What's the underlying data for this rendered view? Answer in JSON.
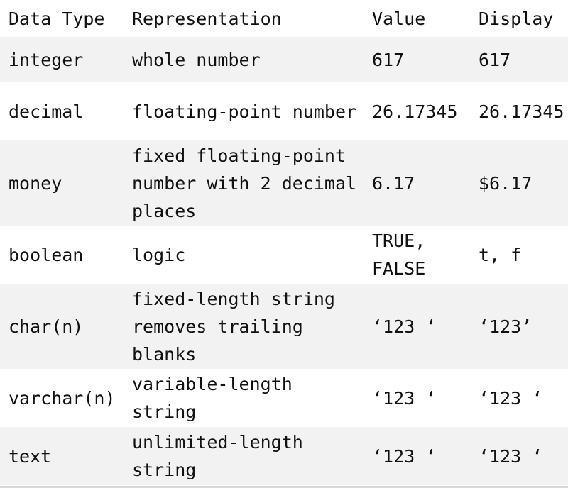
{
  "headers": [
    "Data Type",
    "Representation",
    "Value",
    "Display"
  ],
  "rows": [
    {
      "type": "integer",
      "representation": "whole number",
      "value": "617",
      "display": "617"
    },
    {
      "type": "decimal",
      "representation": "floating-point number",
      "value": "26.17345",
      "display": "26.17345"
    },
    {
      "type": "money",
      "representation": "fixed floating-point number with 2 decimal places",
      "value": "6.17",
      "display": "$6.17"
    },
    {
      "type": "boolean",
      "representation": "logic",
      "value": "TRUE, FALSE",
      "display": "t, f"
    },
    {
      "type": "char(n)",
      "representation": "fixed-length string removes trailing blanks",
      "value": "‘123 ‘",
      "display": "‘123’"
    },
    {
      "type": "varchar(n)",
      "representation": "variable-length string",
      "value": "‘123 ‘",
      "display": "‘123 ‘"
    },
    {
      "type": "text",
      "representation": "unlimited-length string",
      "value": "‘123 ‘",
      "display": "‘123 ‘"
    }
  ]
}
